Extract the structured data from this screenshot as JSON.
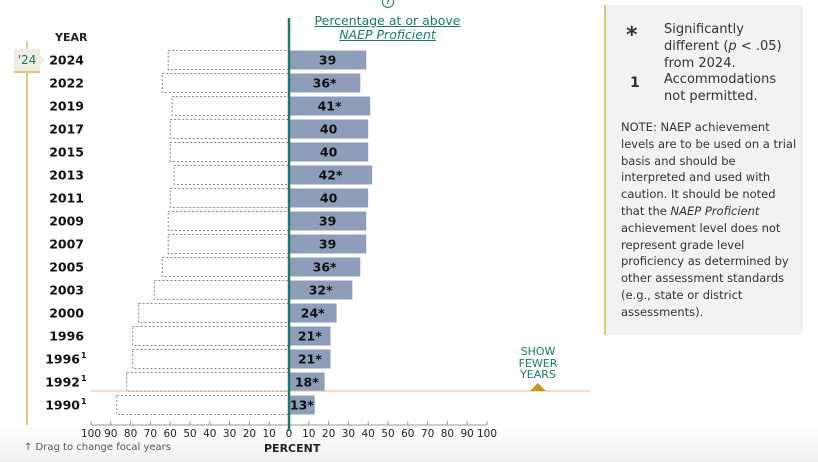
{
  "header": {
    "help_icon": "?",
    "title_line1": "Percentage at or above",
    "title_line2": "NAEP Proficient",
    "year_column": "YEAR"
  },
  "focal_year_marker": "'24",
  "show_fewer_years": [
    "SHOW",
    "FEWER",
    "YEARS"
  ],
  "drag_hint": "↑ Drag to change focal years",
  "legend": {
    "asterisk_symbol": "*",
    "asterisk_text_pre": "Significantly different (",
    "asterisk_text_p": "p",
    "asterisk_text_post": " < .05) from 2024.",
    "footnote_symbol": "1",
    "footnote_text": "Accommodations not permitted.",
    "note_pre": "NOTE: NAEP achievement levels are to be used on a trial basis and should be interpreted and used with caution. It should be noted that the ",
    "note_italic": "NAEP Proficient",
    "note_post": " achievement level does not represent grade level proficiency as determined by other assessment standards (e.g., state or district assessments)."
  },
  "colors": {
    "bar": "#8d9dba",
    "accent": "#1a7a6a",
    "gold": "#e3c47a"
  },
  "chart_data": {
    "type": "bar",
    "orientation": "horizontal",
    "xlabel": "PERCENT",
    "xlim": [
      -100,
      100
    ],
    "xticks": [
      "100",
      "90",
      "80",
      "70",
      "60",
      "50",
      "40",
      "30",
      "20",
      "10",
      "0",
      "10",
      "20",
      "30",
      "40",
      "50",
      "60",
      "70",
      "80",
      "90",
      "100"
    ],
    "rows": [
      {
        "year": "2024",
        "footnote": "",
        "value": 39,
        "label": "39"
      },
      {
        "year": "2022",
        "footnote": "",
        "value": 36,
        "label": "36*"
      },
      {
        "year": "2019",
        "footnote": "",
        "value": 41,
        "label": "41*"
      },
      {
        "year": "2017",
        "footnote": "",
        "value": 40,
        "label": "40"
      },
      {
        "year": "2015",
        "footnote": "",
        "value": 40,
        "label": "40"
      },
      {
        "year": "2013",
        "footnote": "",
        "value": 42,
        "label": "42*"
      },
      {
        "year": "2011",
        "footnote": "",
        "value": 40,
        "label": "40"
      },
      {
        "year": "2009",
        "footnote": "",
        "value": 39,
        "label": "39"
      },
      {
        "year": "2007",
        "footnote": "",
        "value": 39,
        "label": "39"
      },
      {
        "year": "2005",
        "footnote": "",
        "value": 36,
        "label": "36*"
      },
      {
        "year": "2003",
        "footnote": "",
        "value": 32,
        "label": "32*"
      },
      {
        "year": "2000",
        "footnote": "",
        "value": 24,
        "label": "24*"
      },
      {
        "year": "1996",
        "footnote": "",
        "value": 21,
        "label": "21*"
      },
      {
        "year": "1996",
        "footnote": "1",
        "value": 21,
        "label": "21*"
      },
      {
        "year": "1992",
        "footnote": "1",
        "value": 18,
        "label": "18*"
      },
      {
        "year": "1990",
        "footnote": "1",
        "value": 13,
        "label": "13*"
      }
    ]
  }
}
